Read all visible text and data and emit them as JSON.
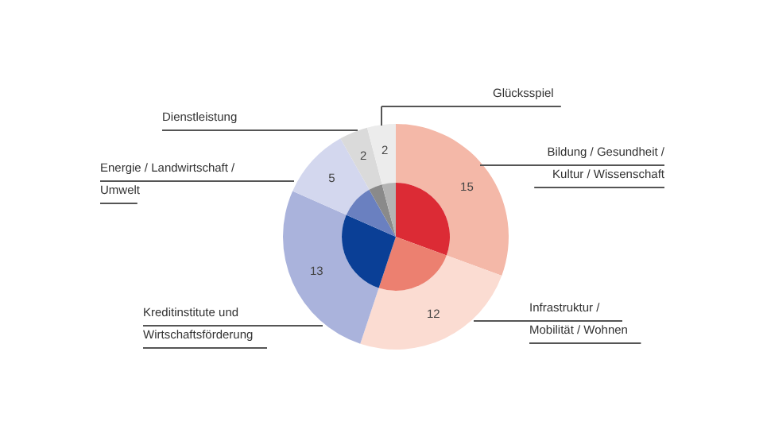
{
  "chart_data": {
    "type": "donut",
    "categories": [
      "Bildung / Gesundheit /\nKultur / Wissenschaft",
      "Infrastruktur /\nMobilität / Wohnen",
      "Kreditinstitute und\nWirtschaftsförderung",
      "Energie / Landwirtschaft /\nUmwelt",
      "Dienstleistung",
      "Glücksspiel"
    ],
    "series": [
      {
        "values": [
          15,
          12,
          13,
          5,
          2,
          2
        ],
        "colors": [
          "#f4b8a8",
          "#fbdcd2",
          "#aab3dc",
          "#d3d7ee",
          "#dadada",
          "#ececec"
        ],
        "value_labels": [
          "15",
          "12",
          "13",
          "5",
          "2",
          "2"
        ]
      },
      {
        "values": [
          30.6,
          24.5,
          26.5,
          10.2,
          4.1,
          4.1
        ],
        "colors": [
          "#dc2b35",
          "#ec8070",
          "#0a3f96",
          "#6a80c0",
          "#8a8a8a",
          "#b4b4b4"
        ]
      }
    ]
  }
}
